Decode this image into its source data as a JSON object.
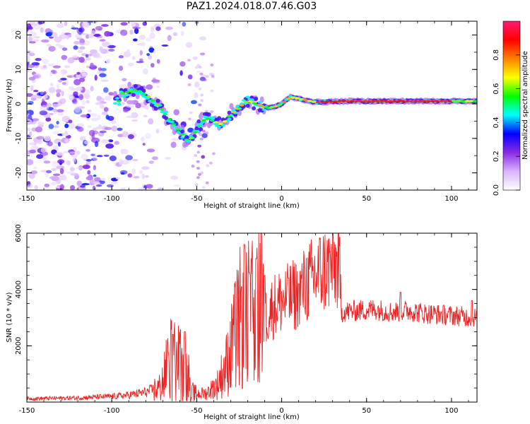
{
  "figure_title": "PAZ1.2024.018.07.46.G03",
  "chart_data": [
    {
      "type": "heatmap",
      "title": "",
      "xlabel": "Height of straight line (km)",
      "ylabel": "Frequency (Hz)",
      "xlim": [
        -150,
        115
      ],
      "ylim": [
        -25,
        24
      ],
      "x_ticks": [
        -150,
        -100,
        -50,
        0,
        50,
        100
      ],
      "y_ticks": [
        -20,
        -10,
        0,
        10,
        20
      ],
      "colorbar": {
        "label": "Normalized spectral amplitude",
        "range": [
          0,
          1
        ],
        "ticks": [
          "0.0",
          "0.2",
          "0.4",
          "0.6",
          "0.8"
        ],
        "colors": [
          "#ffffff",
          "#d9b3ff",
          "#8a2be2",
          "#0000ff",
          "#00ffff",
          "#00ff00",
          "#ffff00",
          "#ff8000",
          "#ff0000",
          "#ff1a75"
        ]
      },
      "ridge": {
        "description_points_km_hz": [
          [
            -95,
            3
          ],
          [
            -85,
            4
          ],
          [
            -78,
            2
          ],
          [
            -72,
            -1
          ],
          [
            -65,
            -5
          ],
          [
            -60,
            -8
          ],
          [
            -55,
            -11
          ],
          [
            -45,
            -4
          ],
          [
            -40,
            -5
          ],
          [
            -35,
            -6
          ],
          [
            -30,
            -3
          ],
          [
            -25,
            -1
          ],
          [
            -20,
            1
          ],
          [
            -15,
            0
          ],
          [
            -10,
            -1
          ],
          [
            -5,
            -1
          ],
          [
            0,
            0
          ],
          [
            5,
            2
          ],
          [
            10,
            1.5
          ],
          [
            20,
            0.5
          ],
          [
            40,
            0.8
          ],
          [
            60,
            0.8
          ],
          [
            80,
            0.8
          ],
          [
            100,
            0.8
          ],
          [
            115,
            0.8
          ]
        ]
      }
    },
    {
      "type": "line",
      "title": "",
      "xlabel": "Height of straight line (km)",
      "ylabel": "SNR (10 * v/v)",
      "xlim": [
        -150,
        115
      ],
      "ylim": [
        0,
        6000
      ],
      "x_ticks": [
        -150,
        -100,
        -50,
        0,
        50,
        100
      ],
      "y_ticks": [
        2000,
        4000,
        6000
      ],
      "color": "#ff0000",
      "envelope_km_snr": [
        [
          -150,
          120
        ],
        [
          -120,
          150
        ],
        [
          -100,
          200
        ],
        [
          -90,
          250
        ],
        [
          -80,
          350
        ],
        [
          -72,
          500
        ],
        [
          -65,
          1500
        ],
        [
          -60,
          1300
        ],
        [
          -55,
          900
        ],
        [
          -52,
          300
        ],
        [
          -45,
          300
        ],
        [
          -38,
          600
        ],
        [
          -32,
          1400
        ],
        [
          -28,
          2200
        ],
        [
          -25,
          2800
        ],
        [
          -22,
          3500
        ],
        [
          -18,
          2800
        ],
        [
          -15,
          4000
        ],
        [
          -13,
          3200
        ],
        [
          -10,
          3000
        ],
        [
          -5,
          3400
        ],
        [
          0,
          3600
        ],
        [
          5,
          3700
        ],
        [
          10,
          3900
        ],
        [
          15,
          4200
        ],
        [
          20,
          4500
        ],
        [
          25,
          4700
        ],
        [
          30,
          4850
        ],
        [
          34,
          4800
        ],
        [
          35,
          3200
        ],
        [
          45,
          3250
        ],
        [
          55,
          3300
        ],
        [
          65,
          3200
        ],
        [
          75,
          3250
        ],
        [
          85,
          3150
        ],
        [
          95,
          3100
        ],
        [
          105,
          3050
        ],
        [
          115,
          3000
        ]
      ],
      "spikes_km_snr": [
        [
          -64,
          2400
        ],
        [
          -57,
          2500
        ],
        [
          -22,
          5600
        ],
        [
          -19,
          4600
        ],
        [
          -15,
          5100
        ],
        [
          -12,
          6000
        ],
        [
          -10,
          4500
        ],
        [
          4,
          4400
        ],
        [
          10,
          4200
        ],
        [
          70,
          3900
        ],
        [
          112,
          3600
        ]
      ]
    }
  ]
}
